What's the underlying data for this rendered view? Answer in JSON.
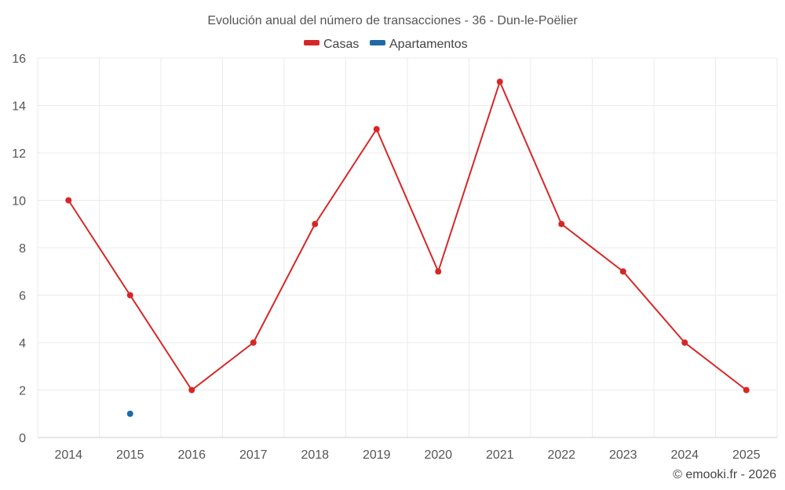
{
  "chart_data": {
    "type": "line",
    "title": "Evolución anual del número de transacciones - 36 - Dun-le-Poëlier",
    "categories": [
      "2014",
      "2015",
      "2016",
      "2017",
      "2018",
      "2019",
      "2020",
      "2021",
      "2022",
      "2023",
      "2024",
      "2025"
    ],
    "series": [
      {
        "name": "Casas",
        "color": "#d62728",
        "values": [
          10,
          6,
          2,
          4,
          9,
          13,
          7,
          15,
          9,
          7,
          4,
          2
        ]
      },
      {
        "name": "Apartamentos",
        "color": "#1f6aa5",
        "values": [
          null,
          1,
          null,
          null,
          null,
          null,
          null,
          null,
          null,
          null,
          null,
          null
        ]
      }
    ],
    "xlabel": "",
    "ylabel": "",
    "ylim": [
      0,
      16
    ],
    "yticks": [
      0,
      2,
      4,
      6,
      8,
      10,
      12,
      14,
      16
    ],
    "grid": true,
    "legend": "top-center"
  },
  "credit": "© emooki.fr - 2026"
}
